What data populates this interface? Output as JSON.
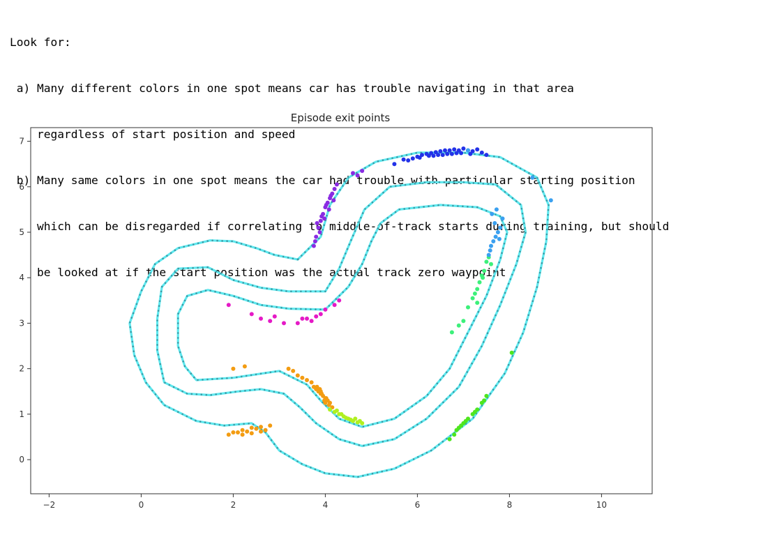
{
  "notes": {
    "intro": "Look for:",
    "a_line1": " a) Many different colors in one spot means car has trouble navigating in that area",
    "a_line2": "    regardless of start position and speed",
    "b_line1": " b) Many same colors in one spot means the car had trouble with particular starting position",
    "b_line2": "    which can be disregarded if correlating to middle-of-track starts during training, but should",
    "b_line3": "    be looked at if the start position was the actual track zero waypoint"
  },
  "chart_data": {
    "type": "scatter",
    "title": "Episode exit points",
    "xlabel": "",
    "ylabel": "",
    "xlim": [
      -2.4,
      11.1
    ],
    "ylim": [
      -0.75,
      7.3
    ],
    "xticks": [
      -2,
      0,
      2,
      4,
      6,
      8,
      10
    ],
    "yticks": [
      0,
      1,
      2,
      3,
      4,
      5,
      6,
      7
    ],
    "grid": false,
    "track": {
      "color": "#5ee8ee",
      "marker_color": "#3c9aa6",
      "center": [
        [
          4.0,
          3.3
        ],
        [
          3.2,
          3.32
        ],
        [
          2.6,
          3.4
        ],
        [
          2.0,
          3.6
        ],
        [
          1.45,
          3.73
        ],
        [
          1.0,
          3.6
        ],
        [
          0.8,
          3.2
        ],
        [
          0.8,
          2.5
        ],
        [
          0.95,
          2.05
        ],
        [
          1.2,
          1.75
        ],
        [
          2.0,
          1.8
        ],
        [
          3.0,
          1.95
        ],
        [
          3.6,
          1.65
        ],
        [
          3.9,
          1.3
        ],
        [
          4.3,
          0.9
        ],
        [
          4.8,
          0.72
        ],
        [
          5.5,
          0.9
        ],
        [
          6.2,
          1.4
        ],
        [
          6.7,
          2.0
        ],
        [
          7.1,
          2.8
        ],
        [
          7.5,
          3.6
        ],
        [
          7.8,
          4.4
        ],
        [
          7.95,
          5.0
        ],
        [
          7.8,
          5.35
        ],
        [
          7.3,
          5.55
        ],
        [
          6.5,
          5.6
        ],
        [
          5.6,
          5.5
        ],
        [
          5.2,
          5.2
        ],
        [
          5.0,
          4.8
        ],
        [
          4.8,
          4.3
        ],
        [
          4.5,
          3.8
        ],
        [
          4.0,
          3.3
        ]
      ],
      "inner": [
        [
          4.0,
          3.7
        ],
        [
          3.2,
          3.7
        ],
        [
          2.6,
          3.78
        ],
        [
          2.0,
          3.95
        ],
        [
          1.45,
          4.23
        ],
        [
          0.8,
          4.2
        ],
        [
          0.45,
          3.8
        ],
        [
          0.35,
          3.1
        ],
        [
          0.35,
          2.4
        ],
        [
          0.5,
          1.7
        ],
        [
          1.0,
          1.45
        ],
        [
          1.5,
          1.42
        ],
        [
          2.1,
          1.5
        ],
        [
          2.6,
          1.55
        ],
        [
          3.1,
          1.45
        ],
        [
          3.45,
          1.15
        ],
        [
          3.8,
          0.8
        ],
        [
          4.3,
          0.45
        ],
        [
          4.8,
          0.3
        ],
        [
          5.5,
          0.45
        ],
        [
          6.2,
          0.9
        ],
        [
          6.9,
          1.6
        ],
        [
          7.4,
          2.5
        ],
        [
          7.8,
          3.4
        ],
        [
          8.15,
          4.3
        ],
        [
          8.35,
          5.0
        ],
        [
          8.25,
          5.6
        ],
        [
          7.7,
          6.05
        ],
        [
          7.0,
          6.1
        ],
        [
          6.2,
          6.1
        ],
        [
          5.4,
          6.0
        ],
        [
          4.85,
          5.5
        ],
        [
          4.55,
          4.8
        ],
        [
          4.3,
          4.2
        ],
        [
          4.0,
          3.7
        ]
      ],
      "outer": [
        [
          3.4,
          4.4
        ],
        [
          2.9,
          4.5
        ],
        [
          2.5,
          4.65
        ],
        [
          2.0,
          4.8
        ],
        [
          1.5,
          4.82
        ],
        [
          0.8,
          4.65
        ],
        [
          0.3,
          4.3
        ],
        [
          0.0,
          3.7
        ],
        [
          -0.25,
          3.0
        ],
        [
          -0.15,
          2.3
        ],
        [
          0.1,
          1.7
        ],
        [
          0.5,
          1.2
        ],
        [
          1.2,
          0.85
        ],
        [
          1.8,
          0.75
        ],
        [
          2.4,
          0.8
        ],
        [
          2.7,
          0.6
        ],
        [
          3.0,
          0.2
        ],
        [
          3.5,
          -0.1
        ],
        [
          4.0,
          -0.3
        ],
        [
          4.7,
          -0.38
        ],
        [
          5.5,
          -0.2
        ],
        [
          6.3,
          0.2
        ],
        [
          7.2,
          0.9
        ],
        [
          7.9,
          1.9
        ],
        [
          8.3,
          2.8
        ],
        [
          8.6,
          3.8
        ],
        [
          8.8,
          4.8
        ],
        [
          8.85,
          5.6
        ],
        [
          8.6,
          6.2
        ],
        [
          7.8,
          6.65
        ],
        [
          7.0,
          6.75
        ],
        [
          6.0,
          6.75
        ],
        [
          5.1,
          6.55
        ],
        [
          4.5,
          6.2
        ],
        [
          4.1,
          5.6
        ],
        [
          3.9,
          4.9
        ],
        [
          3.4,
          4.4
        ]
      ]
    },
    "series": [
      {
        "color": "#2332e8",
        "x": [
          5.5,
          5.7,
          5.9,
          6.0,
          6.1,
          6.2,
          6.3,
          6.4,
          6.5,
          6.6,
          6.7,
          6.8,
          6.9,
          7.0,
          7.1,
          7.2,
          7.3,
          7.4,
          7.5,
          6.35,
          6.55,
          6.75,
          6.95,
          7.15,
          5.8,
          6.05,
          6.25,
          6.45,
          6.65,
          6.85
        ],
        "y": [
          6.5,
          6.6,
          6.62,
          6.66,
          6.7,
          6.72,
          6.74,
          6.76,
          6.78,
          6.8,
          6.8,
          6.82,
          6.8,
          6.84,
          6.8,
          6.78,
          6.82,
          6.75,
          6.7,
          6.68,
          6.7,
          6.72,
          6.74,
          6.72,
          6.58,
          6.64,
          6.68,
          6.7,
          6.72,
          6.74
        ]
      },
      {
        "color": "#8a2be2",
        "x": [
          3.75,
          3.8,
          3.85,
          3.9,
          3.95,
          4.0,
          4.05,
          4.1,
          4.15,
          4.2,
          4.25,
          3.78,
          3.88,
          3.98,
          4.08,
          4.18,
          3.82,
          3.92,
          4.02,
          4.12,
          4.7,
          4.8,
          4.6
        ],
        "y": [
          4.7,
          4.9,
          5.1,
          5.25,
          5.4,
          5.55,
          5.65,
          5.75,
          5.85,
          5.95,
          6.05,
          4.8,
          5.0,
          5.3,
          5.5,
          5.7,
          5.2,
          5.35,
          5.6,
          5.8,
          6.25,
          6.35,
          6.3
        ]
      },
      {
        "color": "#e51ac6",
        "x": [
          1.9,
          2.4,
          2.6,
          2.8,
          3.1,
          3.4,
          3.6,
          3.7,
          3.8,
          3.9,
          4.0,
          4.2,
          4.3,
          2.9,
          3.5
        ],
        "y": [
          3.4,
          3.2,
          3.1,
          3.05,
          3.0,
          3.0,
          3.1,
          3.05,
          3.15,
          3.2,
          3.3,
          3.4,
          3.5,
          3.15,
          3.1
        ]
      },
      {
        "color": "#f39c12",
        "x": [
          1.9,
          2.0,
          2.1,
          2.2,
          2.3,
          2.4,
          2.5,
          2.6,
          2.7,
          2.8,
          2.2,
          2.4,
          2.6,
          2.0,
          2.25,
          3.2,
          3.3,
          3.4,
          3.5,
          3.6,
          3.7,
          3.75,
          3.8,
          3.85,
          3.9,
          3.95,
          4.0,
          4.05,
          4.1,
          3.82,
          3.92,
          4.02,
          3.88,
          3.98,
          4.08,
          3.9,
          4.0,
          4.15
        ],
        "y": [
          0.55,
          0.6,
          0.6,
          0.65,
          0.62,
          0.7,
          0.68,
          0.72,
          0.65,
          0.75,
          0.55,
          0.58,
          0.62,
          2.0,
          2.05,
          2.0,
          1.95,
          1.85,
          1.8,
          1.75,
          1.7,
          1.6,
          1.55,
          1.5,
          1.45,
          1.4,
          1.35,
          1.3,
          1.25,
          1.6,
          1.45,
          1.35,
          1.55,
          1.3,
          1.2,
          1.5,
          1.25,
          1.15
        ]
      },
      {
        "color": "#b0f020",
        "x": [
          4.1,
          4.2,
          4.3,
          4.4,
          4.5,
          4.6,
          4.7,
          4.8,
          4.35,
          4.55,
          4.65,
          4.25,
          4.45,
          4.75
        ],
        "y": [
          1.1,
          1.05,
          1.0,
          0.95,
          0.9,
          0.85,
          0.82,
          0.8,
          1.0,
          0.88,
          0.9,
          1.08,
          0.92,
          0.85
        ]
      },
      {
        "color": "#3cf07a",
        "x": [
          6.75,
          6.9,
          7.0,
          7.1,
          7.2,
          7.3,
          7.35,
          7.4,
          7.45,
          7.5,
          7.55,
          7.6,
          7.25,
          7.42,
          7.3
        ],
        "y": [
          2.8,
          2.95,
          3.05,
          3.35,
          3.55,
          3.75,
          3.9,
          4.05,
          4.15,
          4.35,
          4.45,
          4.3,
          3.65,
          4.0,
          3.45
        ]
      },
      {
        "color": "#3aa0f0",
        "x": [
          7.55,
          7.6,
          7.65,
          7.7,
          7.75,
          7.8,
          7.85,
          7.58,
          7.68,
          7.78,
          7.62,
          7.72,
          8.5,
          8.9,
          7.1
        ],
        "y": [
          4.5,
          4.7,
          4.8,
          4.9,
          5.0,
          5.1,
          5.3,
          4.6,
          5.2,
          4.85,
          5.4,
          5.5,
          6.2,
          5.7,
          6.8
        ]
      },
      {
        "color": "#4ee61e",
        "x": [
          6.7,
          6.8,
          6.9,
          7.0,
          7.1,
          7.2,
          7.3,
          7.4,
          7.5,
          6.85,
          7.05,
          7.25,
          7.45,
          6.95,
          8.05
        ],
        "y": [
          0.45,
          0.55,
          0.7,
          0.8,
          0.9,
          1.0,
          1.1,
          1.25,
          1.4,
          0.65,
          0.85,
          1.05,
          1.3,
          0.75,
          2.35
        ]
      }
    ]
  }
}
